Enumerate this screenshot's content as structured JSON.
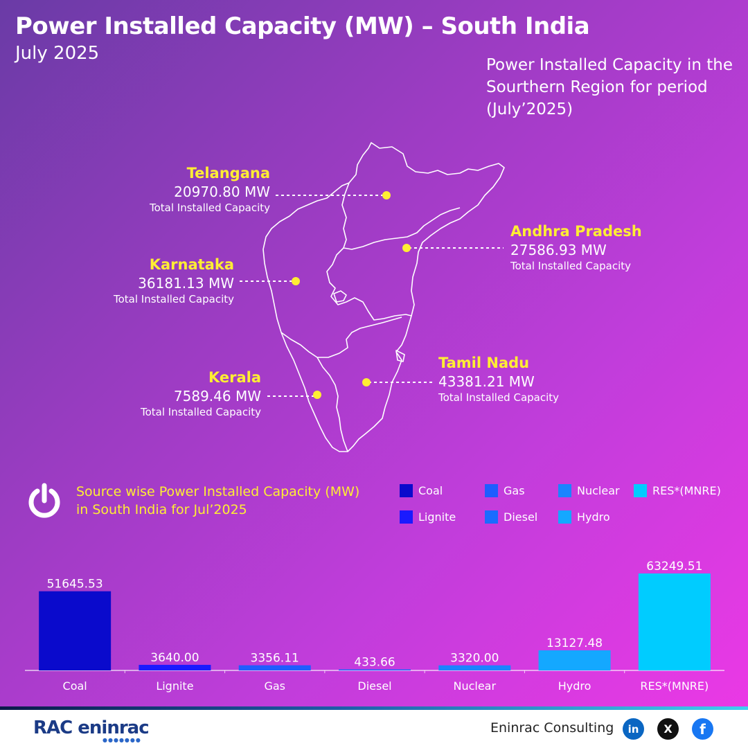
{
  "header": {
    "title": "Power Installed Capacity (MW) – South India",
    "subtitle": "July 2025",
    "caption": "Power Installed Capacity in the Sourthern Region for period (July’2025)"
  },
  "states": [
    {
      "name": "Telangana",
      "value": "20970.80 MW",
      "sub": "Total Installed Capacity"
    },
    {
      "name": "Andhra Pradesh",
      "value": "27586.93 MW",
      "sub": "Total Installed Capacity"
    },
    {
      "name": "Karnataka",
      "value": "36181.13 MW",
      "sub": "Total Installed Capacity"
    },
    {
      "name": "Tamil Nadu",
      "value": "43381.21 MW",
      "sub": "Total Installed Capacity"
    },
    {
      "name": "Kerala",
      "value": "7589.46 MW",
      "sub": "Total Installed Capacity"
    }
  ],
  "source_section": {
    "title_line1": "Source wise Power Installed Capacity (MW)",
    "title_line2": "in South India for Jul’2025",
    "icon": "power-icon"
  },
  "legend": [
    {
      "label": "Coal",
      "color": "#0a0acc"
    },
    {
      "label": "Lignite",
      "color": "#1a1aff"
    },
    {
      "label": "Gas",
      "color": "#1f5dff"
    },
    {
      "label": "Diesel",
      "color": "#1a6cff"
    },
    {
      "label": "Nuclear",
      "color": "#1b84ff"
    },
    {
      "label": "Hydro",
      "color": "#14a8ff"
    },
    {
      "label": "RES*(MNRE)",
      "color": "#00ccff"
    }
  ],
  "chart_data": {
    "type": "bar",
    "categories": [
      "Coal",
      "Lignite",
      "Gas",
      "Diesel",
      "Nuclear",
      "Hydro",
      "RES*(MNRE)"
    ],
    "values": [
      51645.53,
      3640.0,
      3356.11,
      433.66,
      3320.0,
      13127.48,
      63249.51
    ],
    "value_labels": [
      "51645.53",
      "3640.00",
      "3356.11",
      "433.66",
      "3320.00",
      "13127.48",
      "63249.51"
    ],
    "colors": [
      "#0a0acc",
      "#1a1aff",
      "#1f5dff",
      "#1a6cff",
      "#1b84ff",
      "#14a8ff",
      "#00ccff"
    ],
    "ylim": [
      0,
      63249.51
    ],
    "grid": false,
    "legend_position": "top-right"
  },
  "footer": {
    "logo": "RAC eninrac",
    "company": "Eninrac Consulting",
    "social": [
      {
        "icon": "linkedin-icon",
        "text": "in",
        "color": "#0a66c2"
      },
      {
        "icon": "x-icon",
        "text": "X",
        "color": "#111111"
      },
      {
        "icon": "facebook-icon",
        "text": "f",
        "color": "#1877f2"
      }
    ]
  }
}
